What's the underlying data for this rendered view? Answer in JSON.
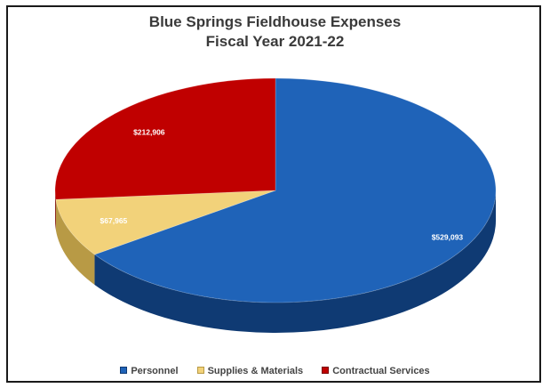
{
  "chart_data": {
    "type": "pie",
    "title": "Blue Springs Fieldhouse Expenses",
    "subtitle": "Fiscal Year 2021-22",
    "categories": [
      "Personnel",
      "Supplies & Materials",
      "Contractual Services"
    ],
    "values": [
      529093,
      67965,
      212906
    ],
    "labels": [
      "$529,093",
      "$67,965",
      "$212,906"
    ],
    "colors": [
      "#1f63b8",
      "#f2d27a",
      "#c00000"
    ],
    "side_colors": [
      "#0f3a73",
      "#b89a45",
      "#7a0000"
    ],
    "legend_position": "bottom",
    "style": "3d-pie"
  }
}
